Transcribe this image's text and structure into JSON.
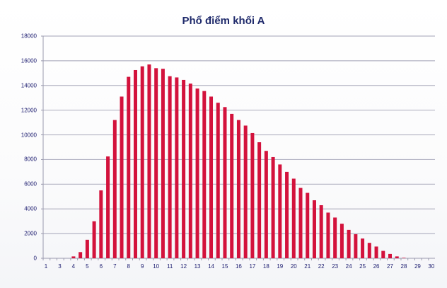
{
  "chart_data": {
    "type": "bar",
    "title": "Phổ điểm khối A",
    "xlabel": "",
    "ylabel": "",
    "ylim": [
      0,
      18000
    ],
    "yticks": [
      0,
      2000,
      4000,
      6000,
      8000,
      10000,
      12000,
      14000,
      16000,
      18000
    ],
    "xtick_labels": [
      "1",
      "3",
      "4",
      "5",
      "6",
      "7",
      "8",
      "9",
      "10",
      "11",
      "12",
      "13",
      "14",
      "15",
      "16",
      "17",
      "18",
      "19",
      "20",
      "21",
      "22",
      "23",
      "24",
      "25",
      "26",
      "27",
      "28",
      "29",
      "30"
    ],
    "grid": "horizontal",
    "legend": "none",
    "bar_color": "#d3123c",
    "categories": [
      4,
      4.5,
      5,
      5.5,
      6,
      6.5,
      7,
      7.5,
      8,
      8.5,
      9,
      9.5,
      10,
      10.5,
      11,
      11.5,
      12,
      12.5,
      13,
      13.5,
      14,
      14.5,
      15,
      15.5,
      16,
      16.5,
      17,
      17.5,
      18,
      18.5,
      19,
      19.5,
      20,
      20.5,
      21,
      21.5,
      22,
      22.5,
      23,
      23.5,
      24,
      24.5,
      25,
      25.5,
      26,
      26.5,
      27,
      27.5,
      28
    ],
    "values": [
      150,
      500,
      1500,
      3000,
      5500,
      8250,
      11200,
      13100,
      14700,
      15250,
      15550,
      15700,
      15400,
      15350,
      14750,
      14650,
      14450,
      14150,
      13750,
      13550,
      13100,
      12600,
      12250,
      11700,
      11200,
      10750,
      10150,
      9400,
      8700,
      8200,
      7600,
      7000,
      6450,
      5700,
      5300,
      4700,
      4300,
      3700,
      3300,
      2800,
      2300,
      1950,
      1600,
      1250,
      950,
      600,
      350,
      150,
      40
    ]
  }
}
